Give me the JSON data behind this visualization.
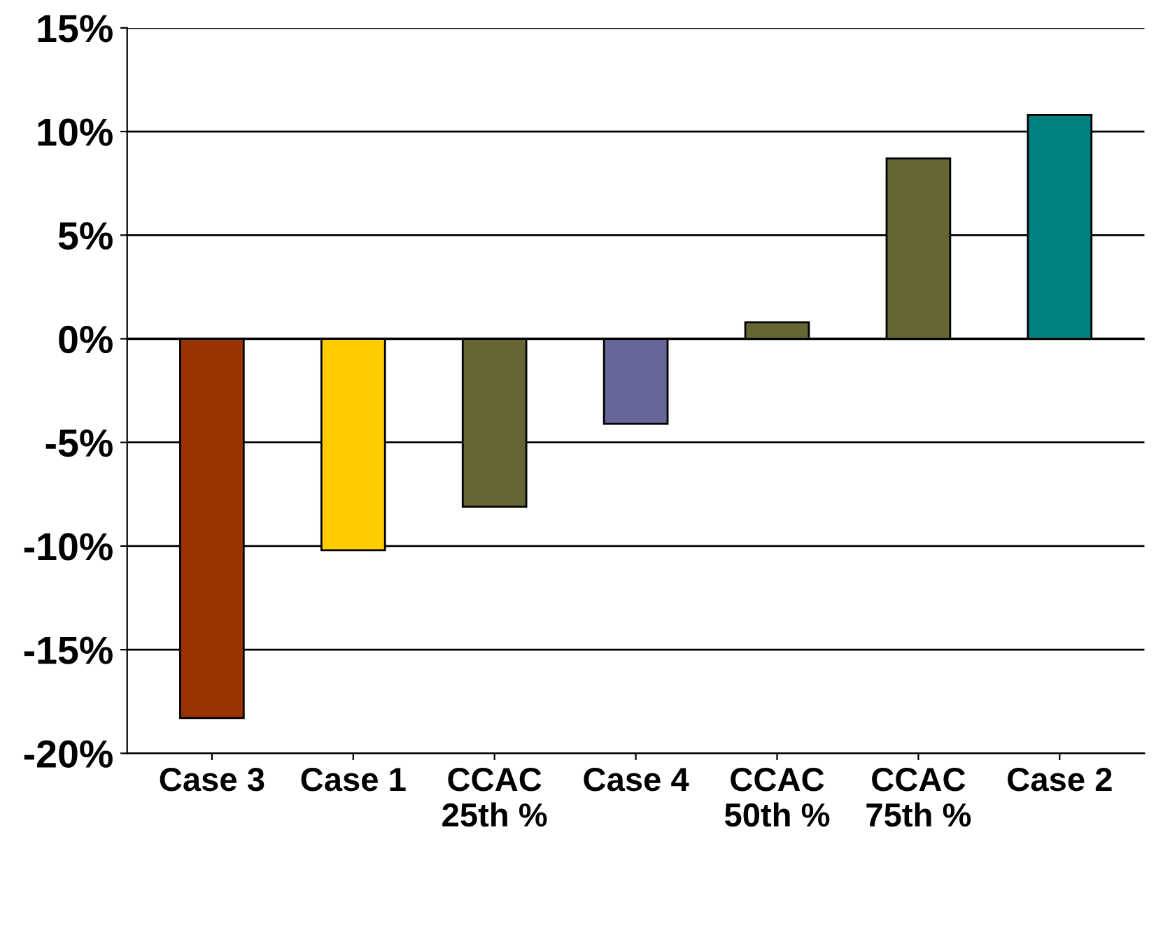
{
  "chart_data": {
    "type": "bar",
    "categories": [
      "Case 3",
      "Case 1",
      "CCAC\n25th %",
      "Case 4",
      "CCAC\n50th %",
      "CCAC\n75th %",
      "Case 2"
    ],
    "values": [
      -18.3,
      -10.2,
      -8.1,
      -4.1,
      0.8,
      8.7,
      10.8
    ],
    "colors": [
      "#993300",
      "#ffcc00",
      "#666633",
      "#666699",
      "#666633",
      "#666633",
      "#008080"
    ],
    "ylim": [
      -20,
      15
    ],
    "yticks": [
      {
        "value": -20,
        "label": "-20%"
      },
      {
        "value": -15,
        "label": "-15%"
      },
      {
        "value": -10,
        "label": "-10%"
      },
      {
        "value": -5,
        "label": "-5%"
      },
      {
        "value": 0,
        "label": "0%"
      },
      {
        "value": 5,
        "label": "5%"
      },
      {
        "value": 10,
        "label": "10%"
      },
      {
        "value": 15,
        "label": "15%"
      }
    ],
    "grid": "y"
  }
}
